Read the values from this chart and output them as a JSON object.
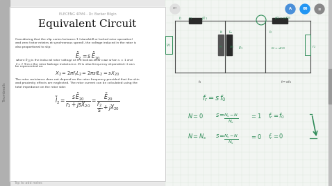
{
  "bg_color": "#e8e8e8",
  "slide_bg": "#ffffff",
  "slide_title": "Equivalent Circuit",
  "slide_subtitle": "ELECENG 4PM4 - Dr. Barker Bilgin",
  "slide_title_color": "#111111",
  "bottom_text": "Tap to add notes",
  "nav_button_color": "#4a90d9",
  "nav_button2_color": "#2196F3",
  "nav_button3_color": "#888888",
  "grid_color": "#dde8dd",
  "circuit_color": "#444444",
  "handwriting_color": "#2e8b57",
  "scrollbar_color": "#c0c0c0",
  "scrollbar_handle": "#999999"
}
